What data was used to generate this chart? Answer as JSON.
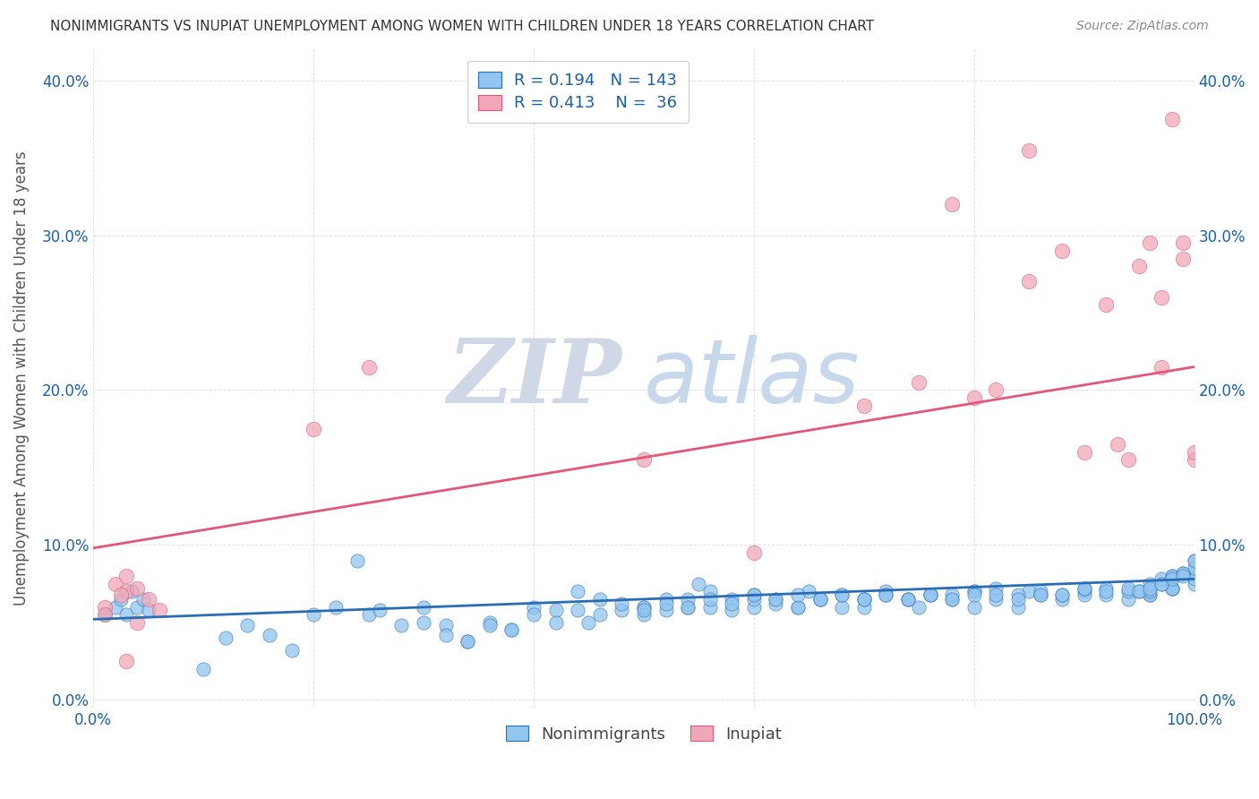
{
  "title": "NONIMMIGRANTS VS INUPIAT UNEMPLOYMENT AMONG WOMEN WITH CHILDREN UNDER 18 YEARS CORRELATION CHART",
  "source": "Source: ZipAtlas.com",
  "ylabel": "Unemployment Among Women with Children Under 18 years",
  "xlim": [
    0.0,
    1.0
  ],
  "ylim": [
    -0.005,
    0.42
  ],
  "yticks": [
    0.0,
    0.1,
    0.2,
    0.3,
    0.4
  ],
  "ytick_labels": [
    "0.0%",
    "10.0%",
    "20.0%",
    "30.0%",
    "40.0%"
  ],
  "xticks": [
    0.0,
    0.2,
    0.4,
    0.6,
    0.8,
    1.0
  ],
  "xtick_labels": [
    "0.0%",
    "",
    "",
    "",
    "",
    "100.0%"
  ],
  "blue_R": 0.194,
  "blue_N": 143,
  "pink_R": 0.413,
  "pink_N": 36,
  "blue_color": "#92c5f0",
  "pink_color": "#f0a8b8",
  "blue_line_color": "#2a6db5",
  "pink_line_color": "#e05878",
  "background_color": "#ffffff",
  "grid_color": "#cccccc",
  "title_color": "#333333",
  "legend_text_color": "#1a5fa8",
  "watermark_zip": "ZIP",
  "watermark_atlas": "atlas",
  "watermark_zip_color": "#d0d8e8",
  "watermark_atlas_color": "#c8d8ec",
  "blue_scatter_x": [
    0.01,
    0.02,
    0.025,
    0.03,
    0.035,
    0.04,
    0.045,
    0.05,
    0.1,
    0.12,
    0.14,
    0.16,
    0.18,
    0.2,
    0.22,
    0.24,
    0.25,
    0.26,
    0.28,
    0.3,
    0.32,
    0.34,
    0.36,
    0.38,
    0.4,
    0.42,
    0.44,
    0.45,
    0.46,
    0.48,
    0.5,
    0.5,
    0.52,
    0.54,
    0.55,
    0.56,
    0.58,
    0.6,
    0.6,
    0.62,
    0.64,
    0.65,
    0.66,
    0.68,
    0.7,
    0.7,
    0.72,
    0.74,
    0.75,
    0.76,
    0.78,
    0.8,
    0.8,
    0.82,
    0.84,
    0.85,
    0.86,
    0.88,
    0.9,
    0.9,
    0.92,
    0.94,
    0.95,
    0.96,
    0.98,
    1.0,
    1.0,
    0.3,
    0.32,
    0.34,
    0.36,
    0.38,
    0.4,
    0.42,
    0.44,
    0.46,
    0.48,
    0.5,
    0.52,
    0.54,
    0.56,
    0.58,
    0.6,
    0.62,
    0.64,
    0.66,
    0.68,
    0.7,
    0.72,
    0.74,
    0.76,
    0.78,
    0.8,
    0.82,
    0.84,
    0.86,
    0.88,
    0.9,
    0.92,
    0.94,
    0.96,
    0.98,
    1.0,
    0.5,
    0.52,
    0.54,
    0.56,
    0.58,
    0.6,
    0.62,
    0.64,
    0.66,
    0.68,
    0.7,
    0.72,
    0.74,
    0.76,
    0.78,
    0.8,
    0.82,
    0.84,
    0.86,
    0.88,
    0.9,
    0.92,
    0.94,
    0.96,
    0.98,
    1.0,
    0.97,
    0.99,
    0.98,
    1.0,
    0.96,
    0.97,
    0.98,
    0.99,
    1.0,
    0.95,
    0.96,
    0.97,
    0.98,
    0.99
  ],
  "blue_scatter_y": [
    0.055,
    0.06,
    0.065,
    0.055,
    0.07,
    0.06,
    0.065,
    0.058,
    0.02,
    0.04,
    0.048,
    0.042,
    0.032,
    0.055,
    0.06,
    0.09,
    0.055,
    0.058,
    0.048,
    0.06,
    0.048,
    0.038,
    0.05,
    0.045,
    0.06,
    0.058,
    0.07,
    0.05,
    0.065,
    0.058,
    0.06,
    0.055,
    0.065,
    0.06,
    0.075,
    0.07,
    0.065,
    0.068,
    0.06,
    0.065,
    0.06,
    0.07,
    0.065,
    0.06,
    0.065,
    0.06,
    0.07,
    0.065,
    0.06,
    0.068,
    0.065,
    0.07,
    0.06,
    0.065,
    0.06,
    0.07,
    0.068,
    0.065,
    0.07,
    0.068,
    0.072,
    0.065,
    0.07,
    0.068,
    0.072,
    0.082,
    0.09,
    0.05,
    0.042,
    0.038,
    0.048,
    0.045,
    0.055,
    0.05,
    0.058,
    0.055,
    0.062,
    0.06,
    0.058,
    0.065,
    0.06,
    0.058,
    0.065,
    0.062,
    0.06,
    0.065,
    0.068,
    0.065,
    0.068,
    0.065,
    0.068,
    0.068,
    0.07,
    0.072,
    0.068,
    0.07,
    0.068,
    0.072,
    0.068,
    0.07,
    0.068,
    0.072,
    0.075,
    0.058,
    0.062,
    0.06,
    0.065,
    0.062,
    0.068,
    0.065,
    0.068,
    0.065,
    0.068,
    0.065,
    0.068,
    0.065,
    0.068,
    0.065,
    0.068,
    0.068,
    0.065,
    0.068,
    0.068,
    0.072,
    0.07,
    0.072,
    0.07,
    0.072,
    0.078,
    0.075,
    0.082,
    0.08,
    0.085,
    0.075,
    0.078,
    0.08,
    0.082,
    0.09,
    0.07,
    0.072,
    0.075,
    0.078,
    0.08
  ],
  "pink_scatter_x": [
    0.01,
    0.02,
    0.03,
    0.04,
    0.05,
    0.06,
    0.01,
    0.025,
    0.03,
    0.04,
    0.2,
    0.25,
    0.5,
    0.6,
    0.7,
    0.75,
    0.78,
    0.8,
    0.82,
    0.85,
    0.85,
    0.88,
    0.9,
    0.92,
    0.93,
    0.94,
    0.95,
    0.96,
    0.97,
    0.97,
    0.98,
    0.99,
    1.0,
    0.99,
    1.0,
    0.03
  ],
  "pink_scatter_y": [
    0.06,
    0.075,
    0.07,
    0.072,
    0.065,
    0.058,
    0.055,
    0.068,
    0.08,
    0.05,
    0.175,
    0.215,
    0.155,
    0.095,
    0.19,
    0.205,
    0.32,
    0.195,
    0.2,
    0.355,
    0.27,
    0.29,
    0.16,
    0.255,
    0.165,
    0.155,
    0.28,
    0.295,
    0.26,
    0.215,
    0.375,
    0.295,
    0.155,
    0.285,
    0.16,
    0.025
  ],
  "blue_trend_x": [
    0.0,
    1.0
  ],
  "blue_trend_y": [
    0.052,
    0.078
  ],
  "pink_trend_x": [
    0.0,
    1.0
  ],
  "pink_trend_y": [
    0.098,
    0.215
  ]
}
